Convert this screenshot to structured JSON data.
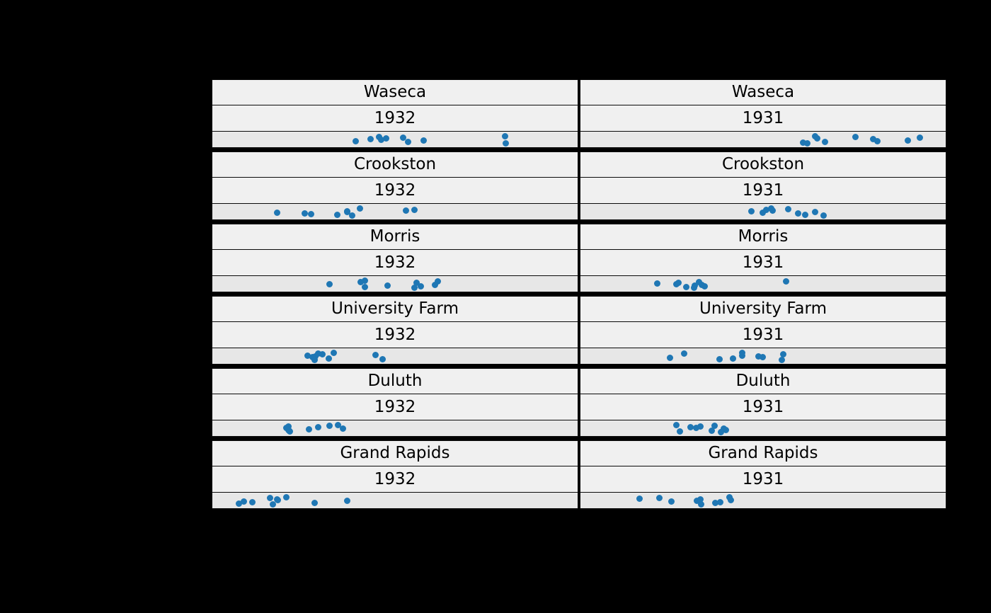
{
  "figure": {
    "background_color": "#000000",
    "header_background_color": "#f0f0f0",
    "panel_background_color": "#e7e7e7",
    "dot_color": "#1f77b4"
  },
  "chart_data": {
    "type": "scatter",
    "subtype": "faceted-strip-plot",
    "title": "",
    "xlabel": "",
    "ylabel": "",
    "xlim": [
      10,
      70
    ],
    "grid": false,
    "legend": false,
    "facet_columns": [
      "1932",
      "1931"
    ],
    "facet_rows": [
      "Waseca",
      "Crookston",
      "Morris",
      "University Farm",
      "Duluth",
      "Grand Rapids"
    ],
    "facets": [
      {
        "site": "Waseca",
        "year": "1932",
        "values": [
          33.5,
          37.7,
          38.5,
          37.4,
          58.2,
          42.2,
          44.7,
          36.0,
          41.3,
          58.1
        ]
      },
      {
        "site": "Waseca",
        "year": "1931",
        "values": [
          48.9,
          55.2,
          47.3,
          50.2,
          63.8,
          58.1,
          65.8,
          48.6,
          46.6,
          58.8
        ]
      },
      {
        "site": "Crookston",
        "year": "1932",
        "values": [
          33.0,
          26.2,
          20.6,
          32.1,
          43.2,
          34.3,
          30.5,
          25.2,
          32.1,
          41.8
        ]
      },
      {
        "site": "Crookston",
        "year": "1931",
        "values": [
          39.9,
          38.1,
          40.5,
          41.3,
          46.9,
          45.7,
          48.6,
          41.6,
          44.1,
          49.9
        ]
      },
      {
        "site": "Morris",
        "year": "1932",
        "values": [
          34.4,
          35.1,
          35.0,
          38.8,
          29.3,
          43.5,
          47.0,
          43.2,
          44.2,
          46.6
        ]
      },
      {
        "site": "Morris",
        "year": "1931",
        "values": [
          27.4,
          28.8,
          25.8,
          26.1,
          43.8,
          28.7,
          30.4,
          29.9,
          22.6,
          29.5
        ]
      },
      {
        "site": "University Farm",
        "year": "1932",
        "values": [
          26.9,
          36.8,
          27.4,
          26.8,
          29.1,
          26.4,
          25.6,
          28.1,
          30.0,
          38.0
        ]
      },
      {
        "site": "University Farm",
        "year": "1931",
        "values": [
          27.0,
          43.1,
          35.1,
          39.9,
          36.6,
          43.3,
          36.6,
          32.8,
          24.7,
          39.3
        ]
      },
      {
        "site": "Duluth",
        "year": "1932",
        "values": [
          22.6,
          25.9,
          22.2,
          22.5,
          30.6,
          22.7,
          22.5,
          31.4,
          27.4,
          29.3
        ]
      },
      {
        "site": "Duluth",
        "year": "1931",
        "values": [
          29.0,
          29.7,
          25.7,
          26.3,
          33.9,
          33.6,
          28.1,
          32.0,
          33.1,
          31.6
        ]
      },
      {
        "site": "Grand Rapids",
        "year": "1932",
        "values": [
          22.1,
          14.4,
          16.6,
          32.2,
          20.6,
          19.5,
          19.9,
          26.8,
          15.2,
          20.7
        ]
      },
      {
        "site": "Grand Rapids",
        "year": "1931",
        "values": [
          33.0,
          29.1,
          29.7,
          23.0,
          29.8,
          32.2,
          24.9,
          34.7,
          19.7,
          34.5
        ]
      }
    ]
  }
}
